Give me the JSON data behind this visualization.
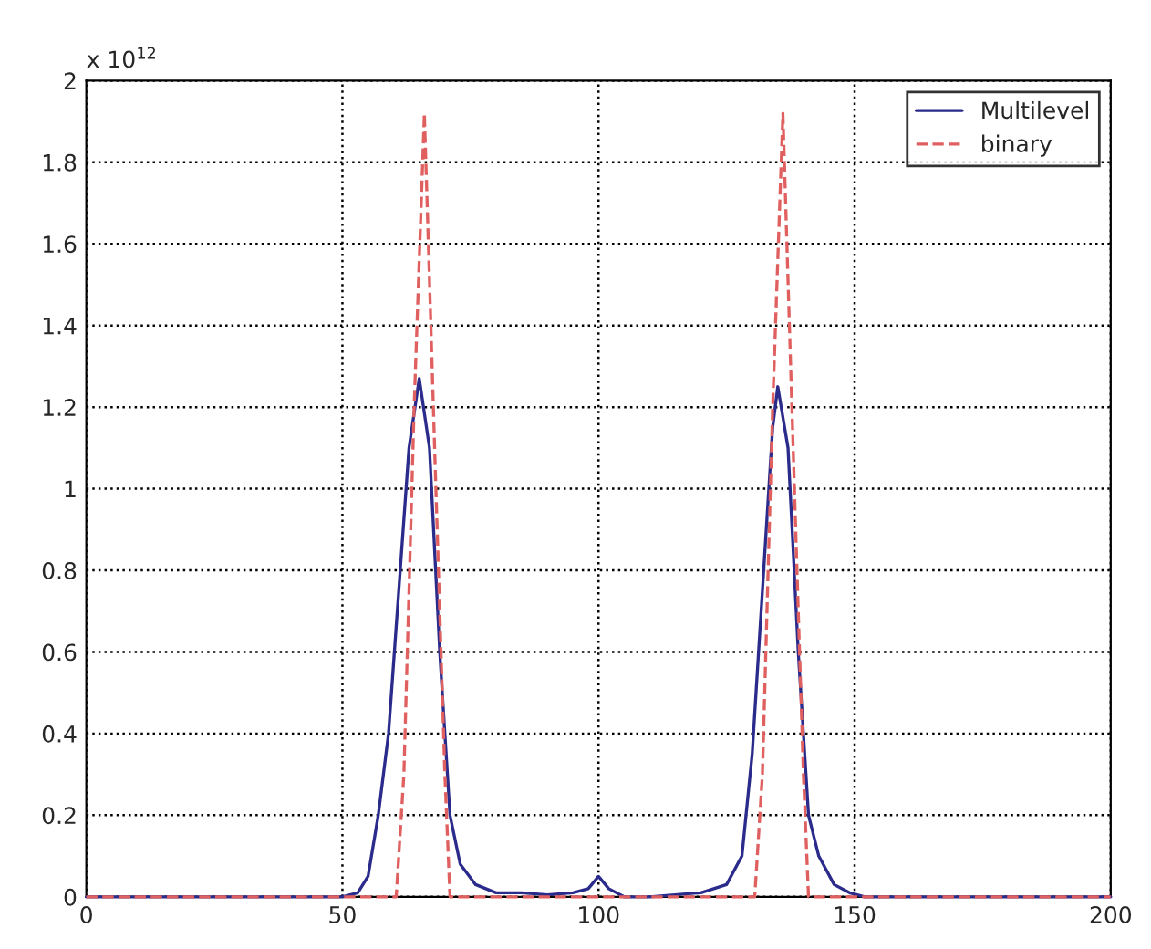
{
  "chart_data": {
    "type": "line",
    "annotations": [
      "x 10$^{12}$"
    ],
    "series": [
      {
        "name": "Multilevel",
        "color": "#2b2b8c",
        "line_style": "solid",
        "x": [
          0,
          20,
          40,
          50,
          53,
          55,
          57,
          59,
          61,
          63,
          65,
          67,
          69,
          70,
          71,
          73,
          76,
          80,
          85,
          90,
          95,
          98,
          100,
          102,
          105,
          110,
          120,
          125,
          128,
          130,
          132,
          134,
          135,
          137,
          139,
          140,
          141,
          143,
          146,
          149,
          152,
          160,
          200
        ],
        "values": [
          0,
          0,
          0,
          0,
          0.01,
          0.05,
          0.2,
          0.4,
          0.75,
          1.1,
          1.27,
          1.1,
          0.6,
          0.4,
          0.2,
          0.08,
          0.03,
          0.01,
          0.01,
          0.005,
          0.01,
          0.02,
          0.05,
          0.02,
          0.0,
          0.0,
          0.01,
          0.03,
          0.1,
          0.35,
          0.75,
          1.15,
          1.25,
          1.1,
          0.6,
          0.4,
          0.2,
          0.1,
          0.03,
          0.01,
          0.0,
          0,
          0
        ]
      },
      {
        "name": "binary",
        "color": "#e06060",
        "line_style": "dashed",
        "x": [
          0,
          50,
          58,
          60.5,
          62,
          64,
          66,
          68,
          70,
          71,
          80,
          120,
          130.5,
          132,
          134,
          136,
          138,
          140,
          141,
          150,
          200
        ],
        "values": [
          0,
          0,
          0,
          0,
          0.3,
          1.2,
          1.92,
          1.1,
          0.3,
          0,
          0,
          0,
          0,
          0.3,
          1.2,
          1.92,
          1.1,
          0.3,
          0,
          0,
          0
        ]
      }
    ],
    "xlim": [
      0,
      200
    ],
    "xticks": [
      0,
      50,
      100,
      150,
      200
    ],
    "ylim": [
      0,
      2
    ],
    "yticks": [
      0,
      0.2,
      0.4,
      0.6,
      0.8,
      1,
      1.2,
      1.4,
      1.6,
      1.8,
      2
    ],
    "grid": true,
    "legend": "top right"
  }
}
